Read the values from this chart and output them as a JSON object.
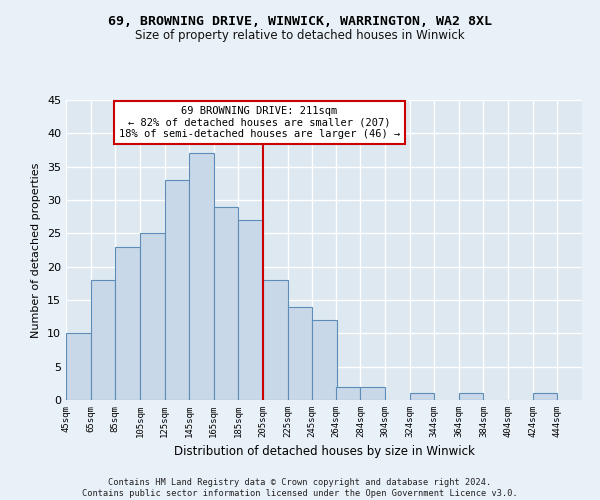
{
  "title": "69, BROWNING DRIVE, WINWICK, WARRINGTON, WA2 8XL",
  "subtitle": "Size of property relative to detached houses in Winwick",
  "xlabel": "Distribution of detached houses by size in Winwick",
  "ylabel": "Number of detached properties",
  "bar_color": "#c8d8e8",
  "bar_edge_color": "#5b8db8",
  "background_color": "#dde8f0",
  "fig_background_color": "#e8f0f8",
  "grid_color": "#ffffff",
  "vline_x": 205,
  "vline_color": "#cc0000",
  "annotation_text": "69 BROWNING DRIVE: 211sqm\n← 82% of detached houses are smaller (207)\n18% of semi-detached houses are larger (46) →",
  "annotation_box_color": "#cc0000",
  "footer": "Contains HM Land Registry data © Crown copyright and database right 2024.\nContains public sector information licensed under the Open Government Licence v3.0.",
  "categories": [
    "45sqm",
    "65sqm",
    "85sqm",
    "105sqm",
    "125sqm",
    "145sqm",
    "165sqm",
    "185sqm",
    "205sqm",
    "225sqm",
    "245sqm",
    "264sqm",
    "284sqm",
    "304sqm",
    "324sqm",
    "344sqm",
    "364sqm",
    "384sqm",
    "404sqm",
    "424sqm",
    "444sqm"
  ],
  "bin_left_edges": [
    45,
    65,
    85,
    105,
    125,
    145,
    165,
    185,
    205,
    225,
    245,
    264,
    284,
    304,
    324,
    344,
    364,
    384,
    404,
    424,
    444
  ],
  "values": [
    10,
    18,
    23,
    25,
    33,
    37,
    29,
    27,
    18,
    14,
    12,
    2,
    2,
    0,
    1,
    0,
    1,
    0,
    0,
    1,
    0
  ],
  "ylim": [
    0,
    45
  ],
  "yticks": [
    0,
    5,
    10,
    15,
    20,
    25,
    30,
    35,
    40,
    45
  ],
  "xlim_left": 45,
  "xlim_right": 464
}
